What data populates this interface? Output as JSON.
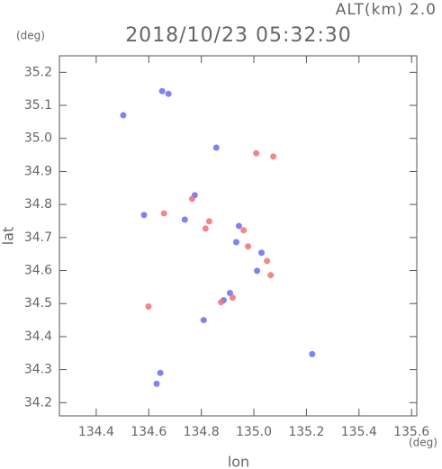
{
  "chart_data": {
    "type": "scatter",
    "title": "2018/10/23 05:32:30",
    "subtitle": "ALT(km) 2.0",
    "y_unit": "(deg)",
    "x_unit": "(deg)",
    "x_label": "lon",
    "y_label": "lat",
    "xlim": [
      134.26,
      135.62
    ],
    "ylim": [
      34.16,
      35.25
    ],
    "xticks": [
      134.4,
      134.6,
      134.8,
      {
        "value": 135,
        "label": "135.0"
      },
      135.2,
      135.4,
      135.6
    ],
    "yticks": [
      34.2,
      34.3,
      34.4,
      34.5,
      34.6,
      34.7,
      34.8,
      34.9,
      {
        "value": 35,
        "label": "35.0"
      },
      35.1,
      35.2
    ],
    "series": [
      {
        "color": "#6b6bf2",
        "x": [
          134.503,
          134.651,
          134.675,
          134.63,
          134.644,
          134.582,
          134.775,
          134.737,
          134.885,
          134.909,
          134.809,
          135.222,
          134.857,
          134.943,
          135.029,
          135.012,
          134.933
        ],
        "values": [
          35.07,
          35.143,
          35.135,
          34.257,
          34.29,
          34.768,
          34.828,
          34.754,
          34.51,
          34.532,
          34.45,
          34.347,
          34.972,
          34.735,
          34.654,
          34.599,
          34.686
        ]
      },
      {
        "color": "#f07272",
        "x": [
          135.009,
          135.074,
          134.83,
          134.816,
          134.875,
          134.919,
          134.599,
          134.658,
          134.978,
          135.05,
          135.064,
          134.961,
          134.765
        ],
        "values": [
          34.955,
          34.945,
          34.749,
          34.727,
          34.504,
          34.518,
          34.491,
          34.773,
          34.673,
          34.629,
          34.586,
          34.722,
          34.817
        ]
      }
    ]
  }
}
